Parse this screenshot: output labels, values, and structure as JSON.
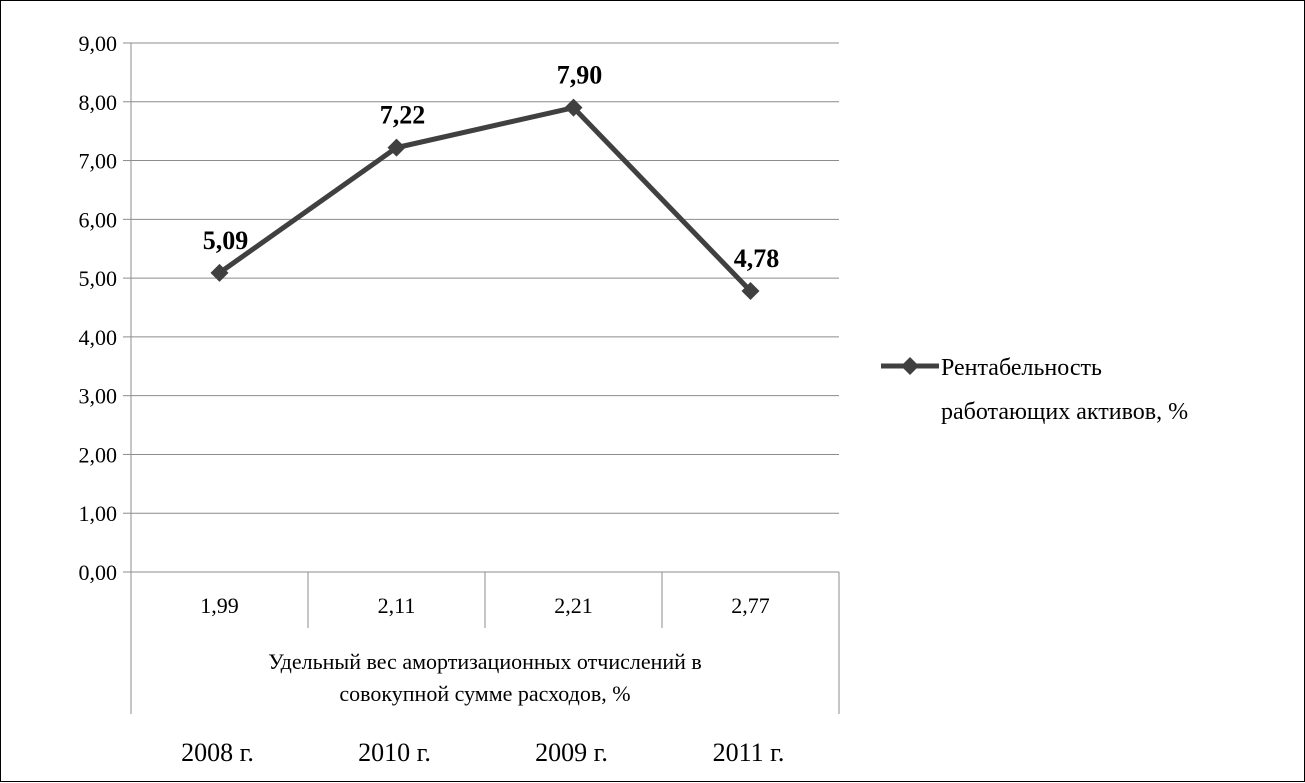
{
  "chart_data": {
    "type": "line",
    "categories": [
      "1,99",
      "2,11",
      "2,21",
      "2,77"
    ],
    "x_axis_title_lines": [
      "Удельный вес амортизационных отчислений в",
      "совокупной сумме расходов, %"
    ],
    "year_labels": [
      "2008 г.",
      "2010 г.",
      "2009 г.",
      "2011 г."
    ],
    "y_ticks": [
      "0,00",
      "1,00",
      "2,00",
      "3,00",
      "4,00",
      "5,00",
      "6,00",
      "7,00",
      "8,00",
      "9,00"
    ],
    "ylim": [
      0,
      9
    ],
    "series": [
      {
        "name_lines": [
          "Рентабельность",
          "работающих активов, %"
        ],
        "values": [
          5.09,
          7.22,
          7.9,
          4.78
        ],
        "data_labels": [
          "5,09",
          "7,22",
          "7,90",
          "4,78"
        ],
        "color": "#404040",
        "marker": "diamond"
      }
    ],
    "grid": true,
    "legend_position": "right"
  }
}
